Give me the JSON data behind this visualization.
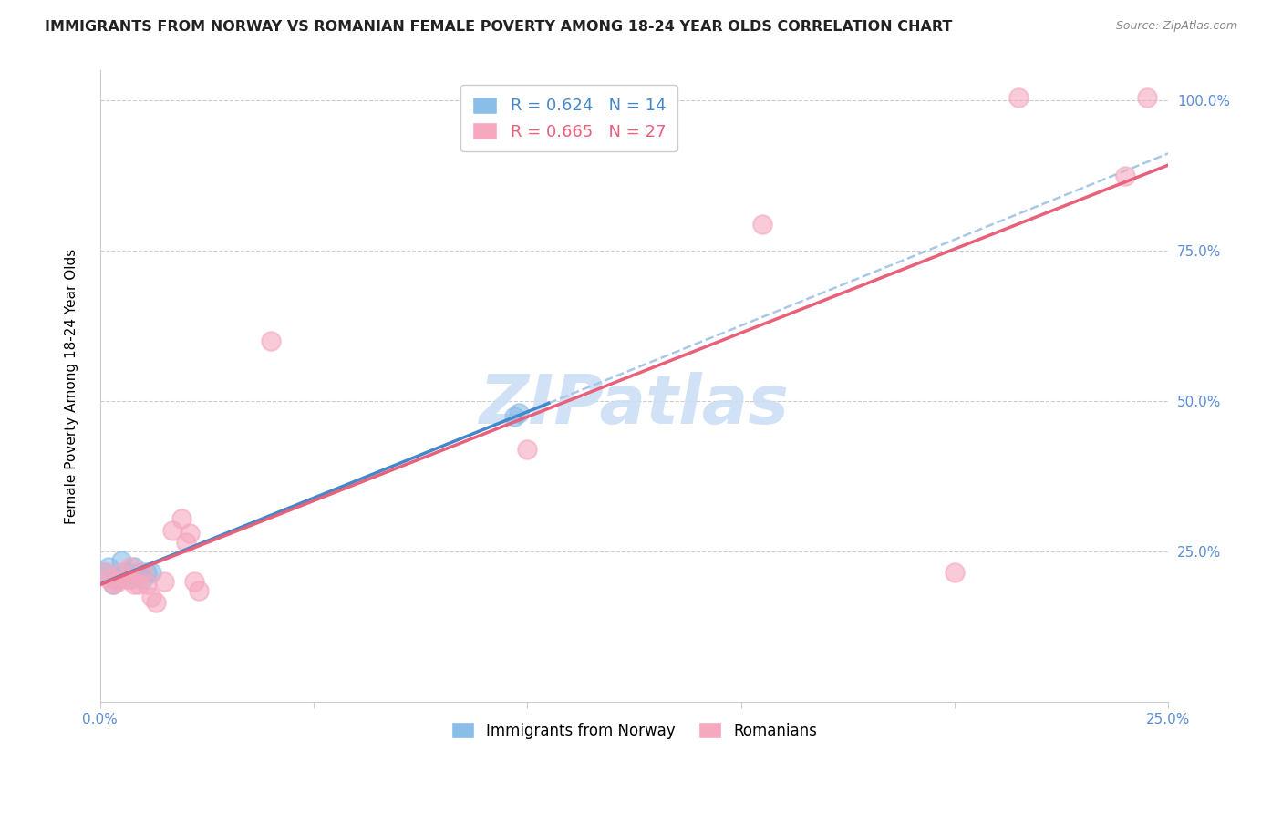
{
  "title": "IMMIGRANTS FROM NORWAY VS ROMANIAN FEMALE POVERTY AMONG 18-24 YEAR OLDS CORRELATION CHART",
  "source": "Source: ZipAtlas.com",
  "ylabel": "Female Poverty Among 18-24 Year Olds",
  "watermark": "ZIPatlas",
  "xlim": [
    0.0,
    0.25
  ],
  "ylim": [
    0.0,
    1.05
  ],
  "xtick_vals": [
    0.0,
    0.05,
    0.1,
    0.15,
    0.2,
    0.25
  ],
  "xtick_labels": [
    "0.0%",
    "",
    "",
    "",
    "",
    "25.0%"
  ],
  "ytick_vals": [
    0.25,
    0.5,
    0.75,
    1.0
  ],
  "ytick_labels_right": [
    "25.0%",
    "50.0%",
    "75.0%",
    "100.0%"
  ],
  "norway_x": [
    0.001,
    0.002,
    0.003,
    0.004,
    0.005,
    0.006,
    0.007,
    0.008,
    0.009,
    0.01,
    0.011,
    0.012,
    0.097,
    0.098
  ],
  "norway_y": [
    0.215,
    0.225,
    0.195,
    0.205,
    0.235,
    0.215,
    0.205,
    0.225,
    0.215,
    0.205,
    0.215,
    0.215,
    0.475,
    0.48
  ],
  "romanian_x": [
    0.001,
    0.002,
    0.003,
    0.004,
    0.005,
    0.006,
    0.007,
    0.008,
    0.009,
    0.01,
    0.011,
    0.012,
    0.013,
    0.015,
    0.017,
    0.019,
    0.02,
    0.021,
    0.022,
    0.023,
    0.04,
    0.1,
    0.155,
    0.2,
    0.215,
    0.24,
    0.245
  ],
  "romanian_y": [
    0.215,
    0.205,
    0.195,
    0.2,
    0.215,
    0.205,
    0.225,
    0.195,
    0.195,
    0.215,
    0.195,
    0.175,
    0.165,
    0.2,
    0.285,
    0.305,
    0.265,
    0.28,
    0.2,
    0.185,
    0.6,
    0.42,
    0.795,
    0.215,
    1.005,
    0.875,
    1.005
  ],
  "norway_R": 0.624,
  "norway_N": 14,
  "romanian_R": 0.665,
  "romanian_N": 27,
  "norway_color": "#8abde8",
  "romanian_color": "#f5a8be",
  "norway_line_color": "#4488cc",
  "romanian_line_color": "#e8607a",
  "ref_line_color": "#a8c8e8",
  "title_fontsize": 11.5,
  "axis_label_fontsize": 11,
  "tick_fontsize": 11,
  "legend_fontsize": 13,
  "right_tick_color": "#5b8dd9",
  "bottom_tick_color": "#5b8dd9"
}
